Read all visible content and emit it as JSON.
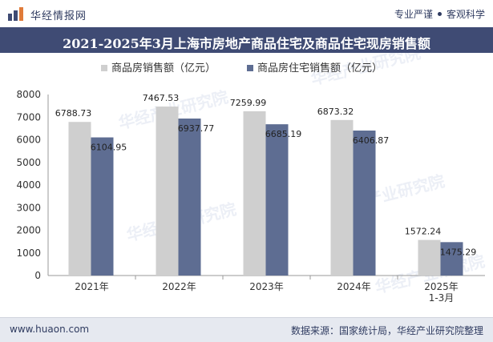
{
  "header": {
    "brand": "华经情报网",
    "tag_left": "专业严谨",
    "tag_right": "客观科学"
  },
  "watermark": "华经产业研究院",
  "footer": {
    "website": "www.huaon.com",
    "source": "数据来源：国家统计局，华经产业研究院整理"
  },
  "colors": {
    "series1": "#cfcfcf",
    "series2": "#5e6d92",
    "title_bar": "#3f4b74"
  },
  "chart_data": {
    "type": "bar",
    "title": "2021-2025年3月上海市房地产商品住宅及商品住宅现房销售额",
    "categories": [
      [
        "2021年"
      ],
      [
        "2022年"
      ],
      [
        "2023年"
      ],
      [
        "2024年"
      ],
      [
        "2025年",
        "1-3月"
      ]
    ],
    "series": [
      {
        "name": "商品房销售额（亿元）",
        "values": [
          6788.73,
          7467.53,
          7259.99,
          6873.32,
          1572.24
        ],
        "labels": [
          "6788.73",
          "7467.53",
          "7259.99",
          "6873.32",
          "1572.24"
        ]
      },
      {
        "name": "商品房住宅销售额（亿元）",
        "values": [
          6104.95,
          6937.77,
          6685.19,
          6406.87,
          1475.29
        ],
        "labels": [
          "6104.95",
          "6937.77",
          "6685.19",
          "6406.87",
          "1475.29"
        ]
      }
    ],
    "ylim": [
      0,
      8000
    ],
    "yticks": [
      "0",
      "1000",
      "2000",
      "3000",
      "4000",
      "5000",
      "6000",
      "7000",
      "8000"
    ],
    "legend_position": "top-center",
    "grid": false
  }
}
